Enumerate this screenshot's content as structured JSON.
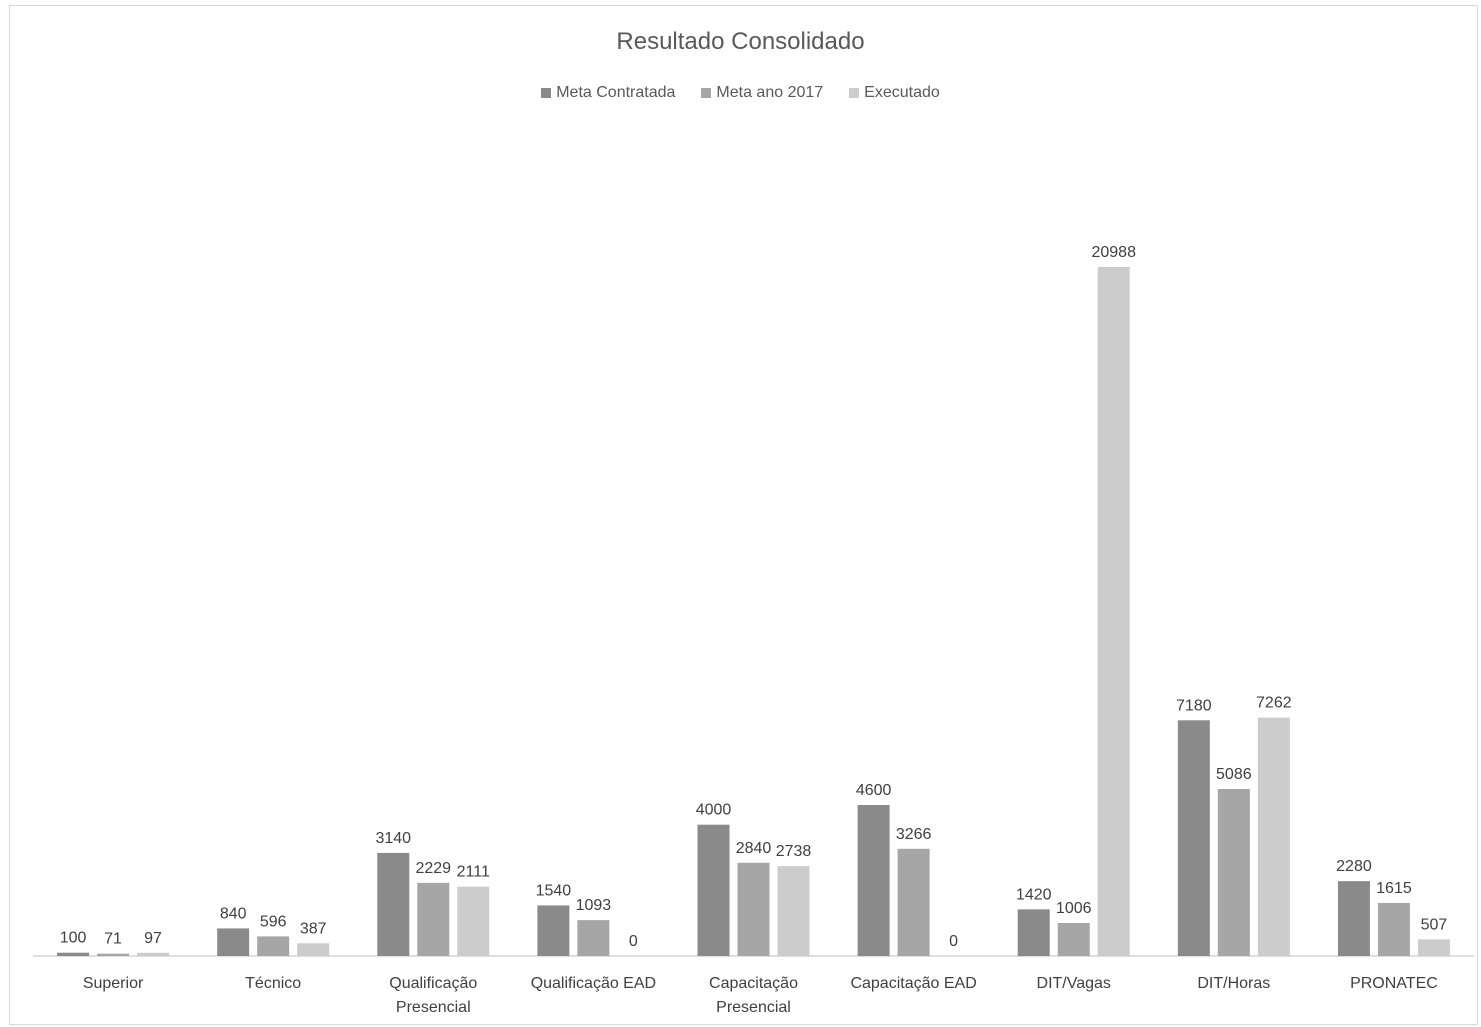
{
  "colors": {
    "Meta Contratada": "#8a8a8a",
    "Meta ano 2017": "#a6a6a6",
    "Executado": "#cccccc",
    "axis": "#bfbfbf",
    "text": "#595959"
  },
  "chart_data": {
    "type": "bar",
    "title": "Resultado Consolidado",
    "xlabel": "",
    "ylabel": "",
    "ylim": [
      0,
      24000
    ],
    "grid": false,
    "legend_position": "top-center",
    "categories": [
      "Superior",
      "Técnico",
      "Qualificação Presencial",
      "Qualificação EAD",
      "Capacitação Presencial",
      "Capacitação EAD",
      "DIT/Vagas",
      "DIT/Horas",
      "PRONATEC"
    ],
    "category_lines": [
      [
        "Superior"
      ],
      [
        "Técnico"
      ],
      [
        "Qualificação",
        "Presencial"
      ],
      [
        "Qualificação EAD"
      ],
      [
        "Capacitação",
        "Presencial"
      ],
      [
        "Capacitação EAD"
      ],
      [
        "DIT/Vagas"
      ],
      [
        "DIT/Horas"
      ],
      [
        "PRONATEC"
      ]
    ],
    "series": [
      {
        "name": "Meta Contratada",
        "values": [
          100,
          840,
          3140,
          1540,
          4000,
          4600,
          1420,
          7180,
          2280
        ]
      },
      {
        "name": "Meta ano 2017",
        "values": [
          71,
          596,
          2229,
          1093,
          2840,
          3266,
          1006,
          5086,
          1615
        ]
      },
      {
        "name": "Executado",
        "values": [
          97,
          387,
          2111,
          0,
          2738,
          0,
          20988,
          7262,
          507
        ]
      }
    ]
  }
}
